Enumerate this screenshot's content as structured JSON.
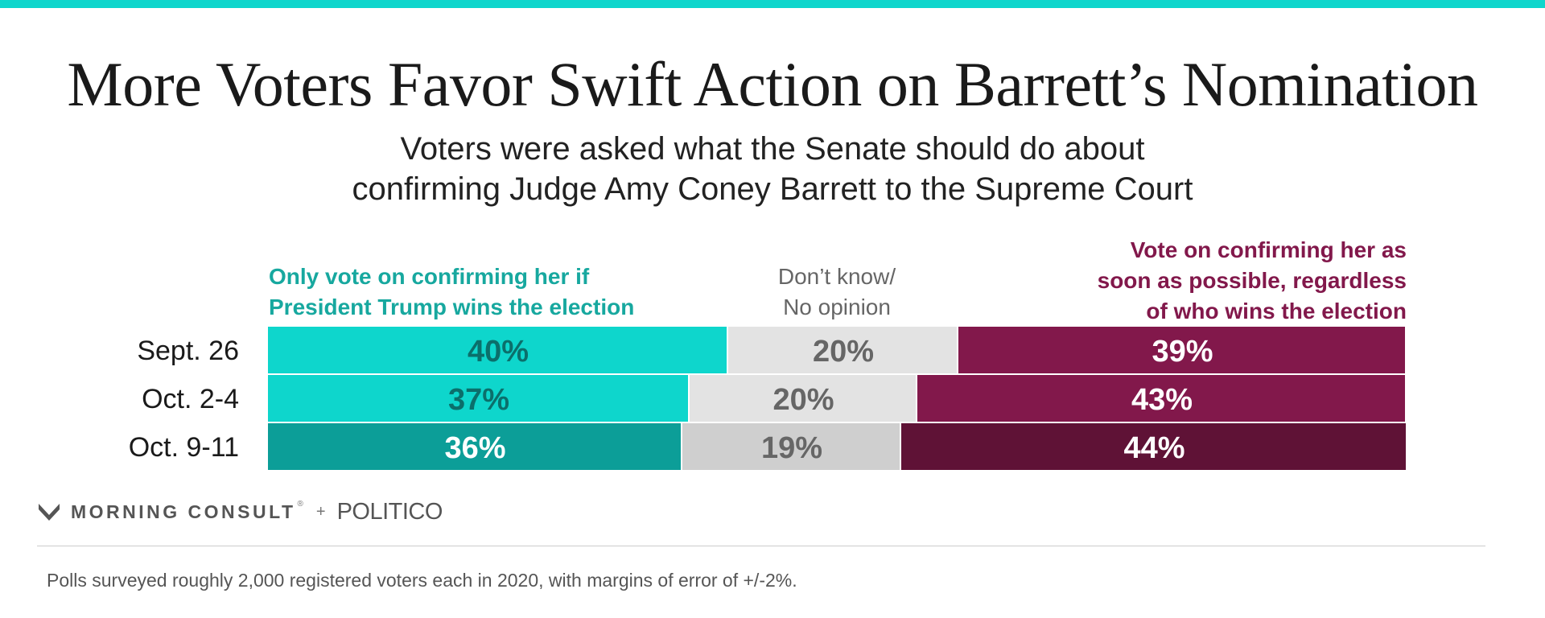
{
  "title": "More Voters Favor Swift Action on Barrett’s Nomination",
  "subtitle_line1": "Voters were asked what the Senate should do about",
  "subtitle_line2": "confirming Judge Amy Coney Barrett to the Supreme Court",
  "legend": {
    "teal_line1": "Only vote on confirming her if",
    "teal_line2": "President Trump wins the election",
    "gray_line1": "Don’t know/",
    "gray_line2": "No opinion",
    "purple_line1": "Vote on confirming her as",
    "purple_line2": "soon as possible, regardless",
    "purple_line3": "of who wins the election"
  },
  "footer": {
    "brand1": "MORNING CONSULT",
    "trademark": "®",
    "plus": "+",
    "brand2": "POLITICO",
    "note": "Polls surveyed roughly 2,000 registered voters each in 2020, with margins of error of +/-2%."
  },
  "chart_data": {
    "type": "bar",
    "orientation": "horizontal",
    "stacked": true,
    "title": "More Voters Favor Swift Action on Barrett’s Nomination",
    "categories": [
      "Sept. 26",
      "Oct. 2-4",
      "Oct. 9-11"
    ],
    "series": [
      {
        "name": "Only vote on confirming her if President Trump wins the election",
        "values": [
          40,
          37,
          36
        ],
        "colors": [
          "#0ed6cc",
          "#0ed6cc",
          "#0c9e98"
        ],
        "label_colors": [
          "#0b6f6b",
          "#0b6f6b",
          "#ffffff"
        ]
      },
      {
        "name": "Don’t know/No opinion",
        "values": [
          20,
          20,
          19
        ],
        "colors": [
          "#e3e3e3",
          "#e3e3e3",
          "#cfcfcf"
        ],
        "label_colors": [
          "#666666",
          "#666666",
          "#666666"
        ]
      },
      {
        "name": "Vote on confirming her as soon as possible, regardless of who wins the election",
        "values": [
          39,
          43,
          44
        ],
        "colors": [
          "#82184b",
          "#82184b",
          "#5f1236"
        ],
        "label_colors": [
          "#ffffff",
          "#ffffff",
          "#ffffff"
        ]
      }
    ],
    "value_suffix": "%"
  }
}
